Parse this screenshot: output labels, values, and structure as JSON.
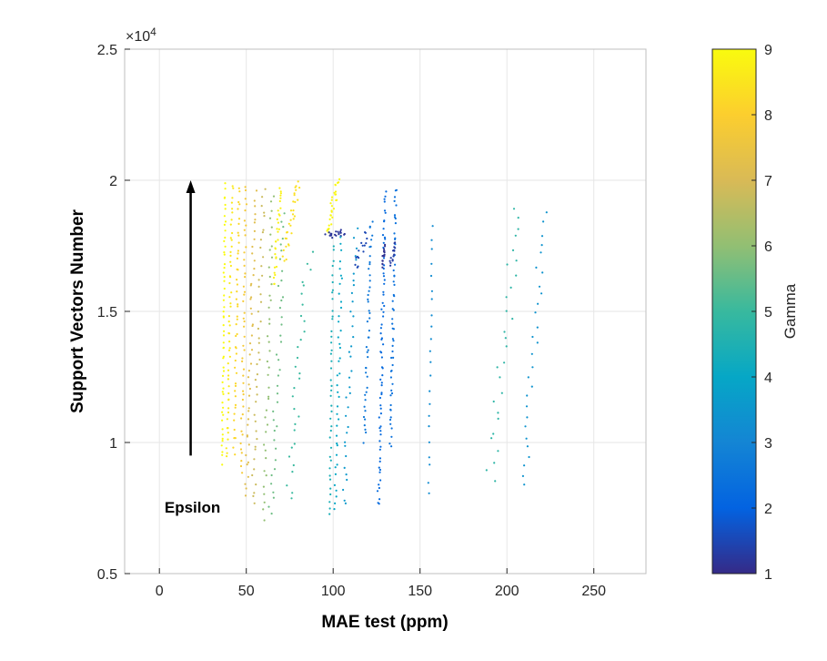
{
  "chart_data": {
    "type": "scatter",
    "title": "",
    "xlabel": "MAE test (ppm)",
    "ylabel": "Support Vectors Number",
    "xlim": [
      -20,
      280
    ],
    "ylim": [
      5000,
      25000
    ],
    "xticks": [
      0,
      50,
      100,
      150,
      200,
      250
    ],
    "xtick_labels": [
      "0",
      "50",
      "100",
      "150",
      "200",
      "250"
    ],
    "yticks": [
      5000,
      10000,
      15000,
      20000,
      25000
    ],
    "ytick_labels": [
      "0.5",
      "1",
      "1.5",
      "2",
      "2.5"
    ],
    "y_exponent_label": "×10",
    "y_exponent_power": "4",
    "grid": true,
    "colorbar": {
      "label": "Gamma",
      "range": [
        1,
        9
      ],
      "ticks": [
        1,
        2,
        3,
        4,
        5,
        6,
        7,
        8,
        9
      ],
      "tick_labels": [
        "1",
        "2",
        "3",
        "4",
        "5",
        "6",
        "7",
        "8",
        "9"
      ],
      "colormap": [
        "#352a87",
        "#0363e1",
        "#1485d4",
        "#06a7c6",
        "#38b99e",
        "#92bf73",
        "#d9ba56",
        "#fcce2e",
        "#f9fb0e"
      ]
    },
    "annotation": {
      "text": "Epsilon",
      "arrow_x": 18,
      "arrow_y_start": 9500,
      "arrow_y_end": 20000
    },
    "series": [
      {
        "name": "gamma 9.0",
        "gamma": 9.0,
        "x_start": 36,
        "x_end": 38,
        "y_start": 9200,
        "y_end": 19800,
        "n": 55
      },
      {
        "name": "gamma 8.6",
        "gamma": 8.6,
        "x_start": 39,
        "x_end": 42,
        "y_start": 9400,
        "y_end": 19800,
        "n": 50
      },
      {
        "name": "gamma 8.2",
        "gamma": 8.2,
        "x_start": 43,
        "x_end": 46,
        "y_start": 9600,
        "y_end": 19700,
        "n": 45
      },
      {
        "name": "gamma 7.8",
        "gamma": 7.8,
        "x_start": 47,
        "x_end": 50,
        "y_start": 8800,
        "y_end": 19800,
        "n": 45
      },
      {
        "name": "gamma 7.2",
        "gamma": 7.2,
        "x_start": 50,
        "x_end": 55,
        "y_start": 8000,
        "y_end": 19600,
        "n": 45
      },
      {
        "name": "gamma 6.8",
        "gamma": 6.8,
        "x_start": 54,
        "x_end": 60,
        "y_start": 7600,
        "y_end": 19700,
        "n": 42
      },
      {
        "name": "gamma 6.0",
        "gamma": 6.0,
        "x_start": 60,
        "x_end": 65,
        "y_start": 7100,
        "y_end": 19500,
        "n": 40
      },
      {
        "name": "gamma 5.6",
        "gamma": 5.6,
        "x_start": 64,
        "x_end": 72,
        "y_start": 7200,
        "y_end": 18800,
        "n": 38
      },
      {
        "name": "gamma 8.8",
        "gamma": 8.8,
        "x_start": 66,
        "x_end": 70,
        "y_start": 16000,
        "y_end": 19800,
        "n": 30
      },
      {
        "name": "gamma 8.4",
        "gamma": 8.4,
        "x_start": 72,
        "x_end": 80,
        "y_start": 17000,
        "y_end": 20000,
        "n": 30
      },
      {
        "name": "gamma 5.0",
        "gamma": 5.0,
        "x_start": 74,
        "x_end": 86,
        "y_start": 7800,
        "y_end": 17200,
        "n": 30
      },
      {
        "name": "gamma 8.9",
        "gamma": 8.9,
        "x_start": 96,
        "x_end": 103,
        "y_start": 17900,
        "y_end": 20000,
        "n": 30
      },
      {
        "name": "gamma 1.2",
        "gamma": 1.2,
        "x_start": 97,
        "x_end": 106,
        "y_start": 17900,
        "y_end": 18000,
        "n": 20
      },
      {
        "name": "gamma 4.4",
        "gamma": 4.4,
        "x_start": 98,
        "x_end": 100,
        "y_start": 7200,
        "y_end": 17500,
        "n": 40
      },
      {
        "name": "gamma 4.0",
        "gamma": 4.0,
        "x_start": 101,
        "x_end": 105,
        "y_start": 7400,
        "y_end": 17800,
        "n": 40
      },
      {
        "name": "gamma 3.6",
        "gamma": 3.6,
        "x_start": 106,
        "x_end": 113,
        "y_start": 7600,
        "y_end": 18100,
        "n": 35
      },
      {
        "name": "gamma 1.5",
        "gamma": 1.5,
        "x_start": 113,
        "x_end": 120,
        "y_start": 16700,
        "y_end": 18000,
        "n": 15
      },
      {
        "name": "gamma 2.6",
        "gamma": 2.6,
        "x_start": 118,
        "x_end": 122,
        "y_start": 10100,
        "y_end": 18500,
        "n": 45
      },
      {
        "name": "gamma 2.2",
        "gamma": 2.2,
        "x_start": 126,
        "x_end": 130,
        "y_start": 7600,
        "y_end": 19600,
        "n": 70
      },
      {
        "name": "gamma 1.1",
        "gamma": 1.1,
        "x_start": 128,
        "x_end": 130,
        "y_start": 16800,
        "y_end": 17500,
        "n": 15
      },
      {
        "name": "gamma 2.4",
        "gamma": 2.4,
        "x_start": 133,
        "x_end": 136,
        "y_start": 9900,
        "y_end": 19700,
        "n": 55
      },
      {
        "name": "gamma 1.3",
        "gamma": 1.3,
        "x_start": 133,
        "x_end": 136,
        "y_start": 16800,
        "y_end": 17600,
        "n": 15
      },
      {
        "name": "gamma 3.2",
        "gamma": 3.2,
        "x_start": 155,
        "x_end": 157,
        "y_start": 8100,
        "y_end": 18300,
        "n": 22
      },
      {
        "name": "gamma 4.8",
        "gamma": 4.8,
        "x_start": 190,
        "x_end": 207,
        "y_start": 8500,
        "y_end": 19000,
        "n": 28
      },
      {
        "name": "gamma 3.4",
        "gamma": 3.4,
        "x_start": 210,
        "x_end": 221,
        "y_start": 8300,
        "y_end": 18700,
        "n": 28
      }
    ]
  }
}
